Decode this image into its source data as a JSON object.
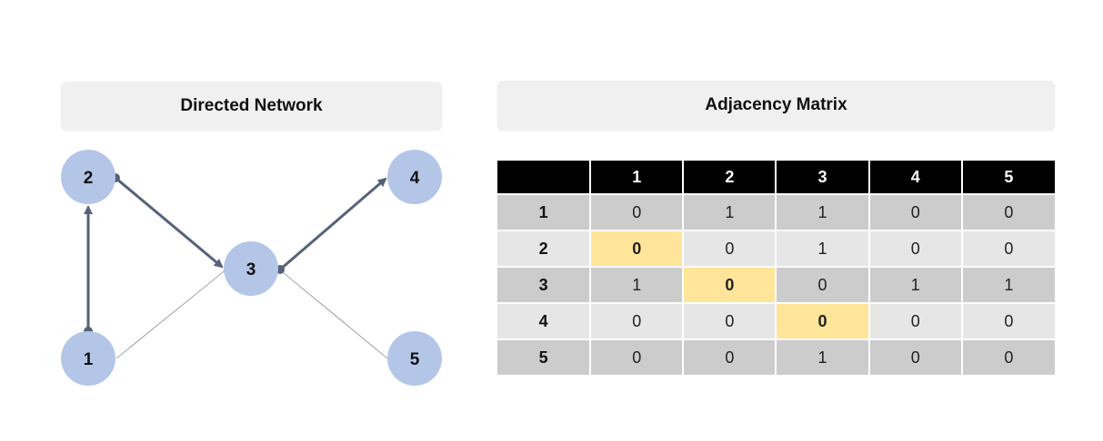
{
  "network": {
    "title": "Directed Network",
    "nodes": [
      {
        "id": "1",
        "label": "1"
      },
      {
        "id": "2",
        "label": "2"
      },
      {
        "id": "3",
        "label": "3"
      },
      {
        "id": "4",
        "label": "4"
      },
      {
        "id": "5",
        "label": "5"
      }
    ],
    "edges": [
      {
        "from": "1",
        "to": "2",
        "directed": true
      },
      {
        "from": "2",
        "to": "3",
        "directed": true
      },
      {
        "from": "3",
        "to": "4",
        "directed": true
      },
      {
        "from": "1",
        "to": "3",
        "directed": false
      },
      {
        "from": "3",
        "to": "5",
        "directed": false
      }
    ],
    "colors": {
      "node": "#b4c6e7",
      "arrow": "#56617a",
      "thin_edge": "#888888"
    }
  },
  "matrix": {
    "title": "Adjacency Matrix",
    "col_headers": [
      "1",
      "2",
      "3",
      "4",
      "5"
    ],
    "rows": [
      {
        "label": "1",
        "values": [
          "0",
          "1",
          "1",
          "0",
          "0"
        ]
      },
      {
        "label": "2",
        "values": [
          "0",
          "0",
          "1",
          "0",
          "0"
        ]
      },
      {
        "label": "3",
        "values": [
          "1",
          "0",
          "0",
          "1",
          "1"
        ]
      },
      {
        "label": "4",
        "values": [
          "0",
          "0",
          "0",
          "0",
          "0"
        ]
      },
      {
        "label": "5",
        "values": [
          "0",
          "0",
          "1",
          "0",
          "0"
        ]
      }
    ],
    "highlight_cells": [
      [
        1,
        0
      ],
      [
        2,
        1
      ],
      [
        3,
        2
      ]
    ],
    "colors": {
      "header": "#000000",
      "row_odd": "#cccccc",
      "row_even": "#e6e6e6",
      "highlight": "#ffe599"
    }
  }
}
